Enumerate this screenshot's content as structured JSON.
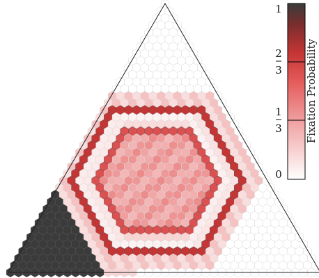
{
  "chart_data": {
    "type": "heatmap",
    "layout": "hexagonal grid inside a simplex (equilateral triangle)",
    "grid": {
      "side_cells": 39
    },
    "colorbar": {
      "label": "Fixation Probability",
      "range": [
        0,
        1
      ],
      "ticks": [
        {
          "value": 0,
          "label": "0"
        },
        {
          "value": 0.3333,
          "num": "1",
          "den": "3"
        },
        {
          "value": 0.6667,
          "num": "2",
          "den": "3"
        },
        {
          "value": 1,
          "label": "1"
        }
      ],
      "colors": [
        "#ffffff",
        "#f2aaaa",
        "#e55d5d",
        "#c43535",
        "#7a2d2d",
        "#3b3b3b"
      ]
    },
    "regions": [
      {
        "name": "bottom-left corner",
        "value": 1.0
      },
      {
        "name": "hexagon outer ring",
        "value": 0.72
      },
      {
        "name": "hexagon pale band",
        "value": 0.45
      },
      {
        "name": "hexagon red ring",
        "value": 0.6
      },
      {
        "name": "hexagon interior",
        "value": 0.4
      },
      {
        "name": "elsewhere",
        "value": 0.0
      }
    ]
  }
}
